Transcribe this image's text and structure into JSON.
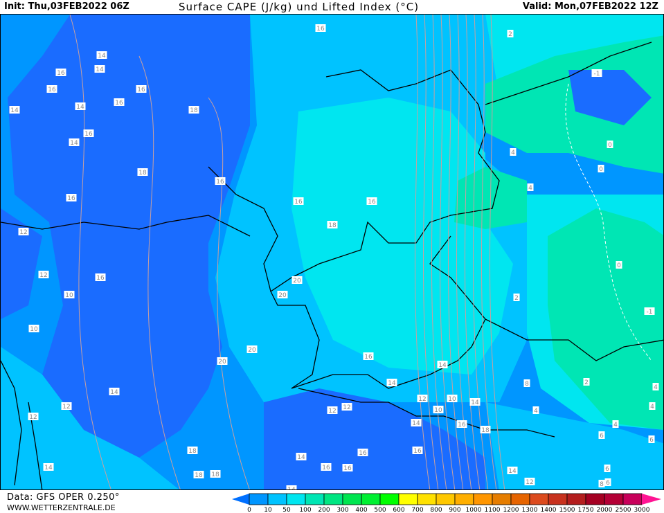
{
  "header": {
    "init": "Init: Thu,03FEB2022 06Z",
    "title": "Surface CAPE (J/kg) und Lifted Index (°C)",
    "valid": "Valid: Mon,07FEB2022 12Z"
  },
  "footer": {
    "data_source": "Data: GFS OPER 0.250°",
    "website": "WWW.WETTERZENTRALE.DE"
  },
  "map": {
    "field_colors": {
      "dark_blue": "#1a6cff",
      "blue": "#0096ff",
      "light_blue": "#00c3ff",
      "cyan": "#00e6f0",
      "green": "#00e6b4"
    },
    "lifted_index_labels": [
      "16",
      "14",
      "16",
      "14",
      "16",
      "16",
      "14",
      "18",
      "14",
      "16",
      "14",
      "16",
      "18",
      "16",
      "16",
      "16",
      "16",
      "18",
      "12",
      "12",
      "16",
      "10",
      "20",
      "20",
      "10",
      "20",
      "20",
      "16",
      "14",
      "12",
      "12",
      "12",
      "12",
      "12",
      "14",
      "14",
      "14",
      "14",
      "16",
      "16",
      "16",
      "16",
      "18",
      "18",
      "18",
      "14",
      "14",
      "12",
      "10",
      "10",
      "14",
      "16",
      "18",
      "8",
      "6",
      "8",
      "4",
      "4",
      "2",
      "0",
      "0",
      "-1",
      "-1",
      "0",
      "4",
      "4",
      "6",
      "2",
      "2",
      "4",
      "4",
      "6",
      "6",
      "12",
      "14"
    ]
  },
  "legend": {
    "unit": "J/kg",
    "ticks": [
      "0",
      "10",
      "50",
      "100",
      "200",
      "300",
      "400",
      "500",
      "600",
      "700",
      "800",
      "900",
      "1000",
      "1100",
      "1200",
      "1300",
      "1400",
      "1500",
      "1750",
      "2000",
      "2500",
      "3000"
    ],
    "low_arrow_color": "#0070ff",
    "high_arrow_color": "#ff1493",
    "colors": [
      "#0096ff",
      "#00c3ff",
      "#00e6f0",
      "#00e6b4",
      "#00e682",
      "#00e650",
      "#00f032",
      "#00ff00",
      "#ffff00",
      "#ffe100",
      "#ffc800",
      "#ffaf00",
      "#ff9600",
      "#e67d00",
      "#e66400",
      "#dc4b1e",
      "#c8321e",
      "#b41e1e",
      "#a50022",
      "#b40036",
      "#c8005a"
    ]
  }
}
